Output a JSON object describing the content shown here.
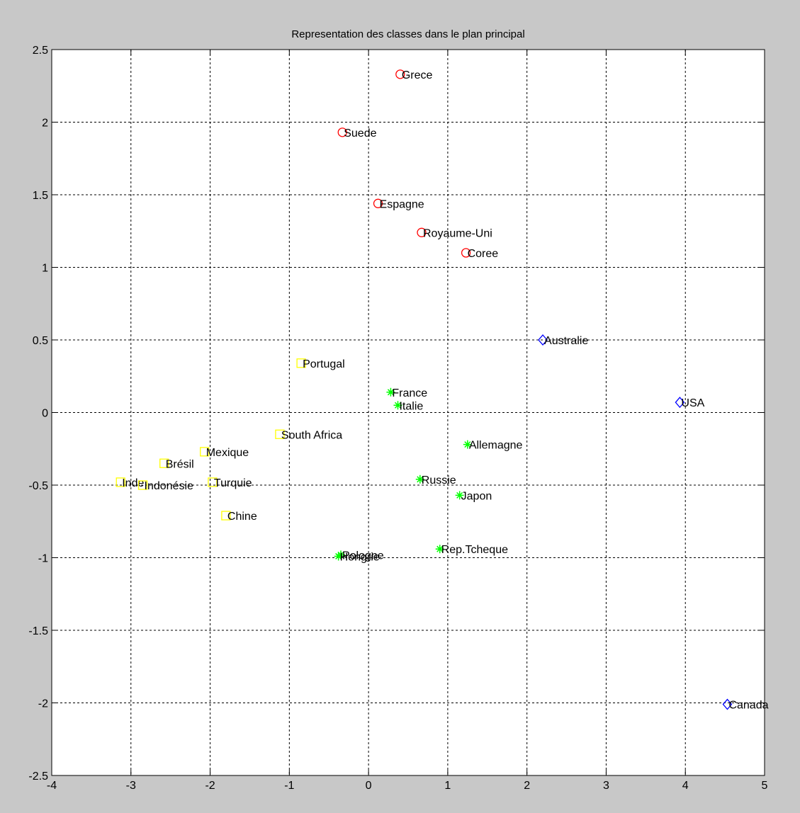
{
  "chart_data": {
    "type": "scatter",
    "title": "Representation des classes dans le plan principal",
    "xlabel": "",
    "ylabel": "",
    "xlim": [
      -4,
      5
    ],
    "ylim": [
      -2.5,
      2.5
    ],
    "xticks": [
      "-4",
      "-3",
      "-2",
      "-1",
      "0",
      "1",
      "2",
      "3",
      "4",
      "5"
    ],
    "yticks": [
      "2.5",
      "2",
      "1.5",
      "1",
      "0.5",
      "0",
      "-0.5",
      "-1",
      "-1.5",
      "-2",
      "-2.5"
    ],
    "grid": true,
    "series": [
      {
        "marker": "circle",
        "color": "#ff0000",
        "points": [
          {
            "label": "Grece",
            "x": 0.4,
            "y": 2.33
          },
          {
            "label": "Suede",
            "x": -0.33,
            "y": 1.93
          },
          {
            "label": "Espagne",
            "x": 0.12,
            "y": 1.44
          },
          {
            "label": "Royaume-Uni",
            "x": 0.67,
            "y": 1.24
          },
          {
            "label": "Coree",
            "x": 1.23,
            "y": 1.1
          }
        ]
      },
      {
        "marker": "diamond",
        "color": "#0000ff",
        "points": [
          {
            "label": "Australie",
            "x": 2.2,
            "y": 0.5
          },
          {
            "label": "USA",
            "x": 3.93,
            "y": 0.07
          },
          {
            "label": "Canada",
            "x": 4.53,
            "y": -2.01
          }
        ]
      },
      {
        "marker": "square",
        "color": "#ffff00",
        "points": [
          {
            "label": "Portugal",
            "x": -0.85,
            "y": 0.34
          },
          {
            "label": "South Africa",
            "x": -1.12,
            "y": -0.15
          },
          {
            "label": "Mexique",
            "x": -2.07,
            "y": -0.27
          },
          {
            "label": "Brésil",
            "x": -2.58,
            "y": -0.35
          },
          {
            "label": "Inde",
            "x": -3.13,
            "y": -0.48
          },
          {
            "label": "Indonésie",
            "x": -2.85,
            "y": -0.5
          },
          {
            "label": "Turquie",
            "x": -1.97,
            "y": -0.48
          },
          {
            "label": "Chine",
            "x": -1.8,
            "y": -0.71
          }
        ]
      },
      {
        "marker": "star",
        "color": "#00ff00",
        "points": [
          {
            "label": "France",
            "x": 0.28,
            "y": 0.14
          },
          {
            "label": "Italie",
            "x": 0.37,
            "y": 0.05
          },
          {
            "label": "Allemagne",
            "x": 1.25,
            "y": -0.22
          },
          {
            "label": "Russie",
            "x": 0.65,
            "y": -0.46
          },
          {
            "label": "Japon",
            "x": 1.15,
            "y": -0.57
          },
          {
            "label": "Rep.Tcheque",
            "x": 0.9,
            "y": -0.94
          },
          {
            "label": "Pologne",
            "x": -0.35,
            "y": -0.98
          },
          {
            "label": "Hongrie",
            "x": -0.38,
            "y": -0.99
          }
        ]
      }
    ]
  }
}
